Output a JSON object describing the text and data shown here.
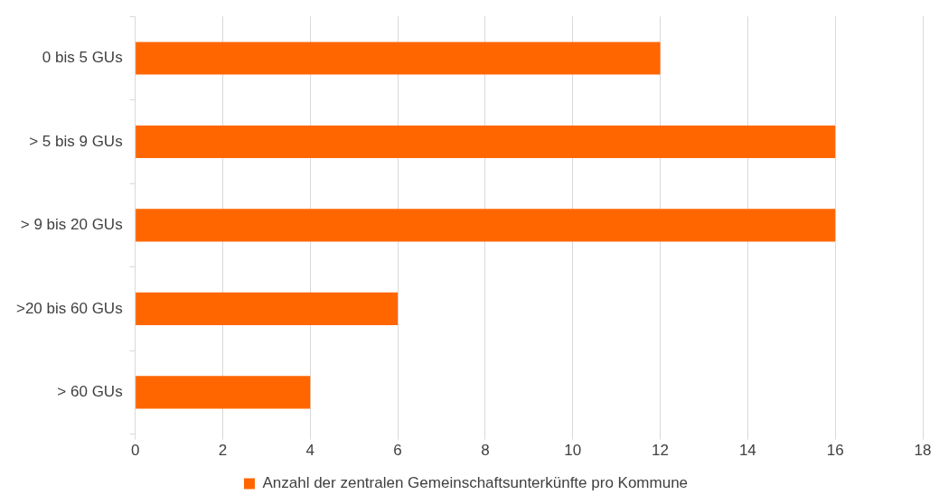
{
  "chart_data": {
    "type": "bar",
    "orientation": "horizontal",
    "categories": [
      "0 bis 5 GUs",
      "> 5 bis 9 GUs",
      "> 9 bis 20 GUs",
      ">20 bis 60 GUs",
      "> 60 GUs"
    ],
    "series": [
      {
        "name": "Anzahl der zentralen Gemeinschaftsunterkünfte pro Kommune",
        "color": "#ff6600",
        "values": [
          12,
          16,
          16,
          6,
          4
        ]
      }
    ],
    "xlim": [
      0,
      18
    ],
    "xticks": [
      0,
      2,
      4,
      6,
      8,
      10,
      12,
      14,
      16,
      18
    ],
    "grid": "x",
    "legend": "bottom"
  }
}
